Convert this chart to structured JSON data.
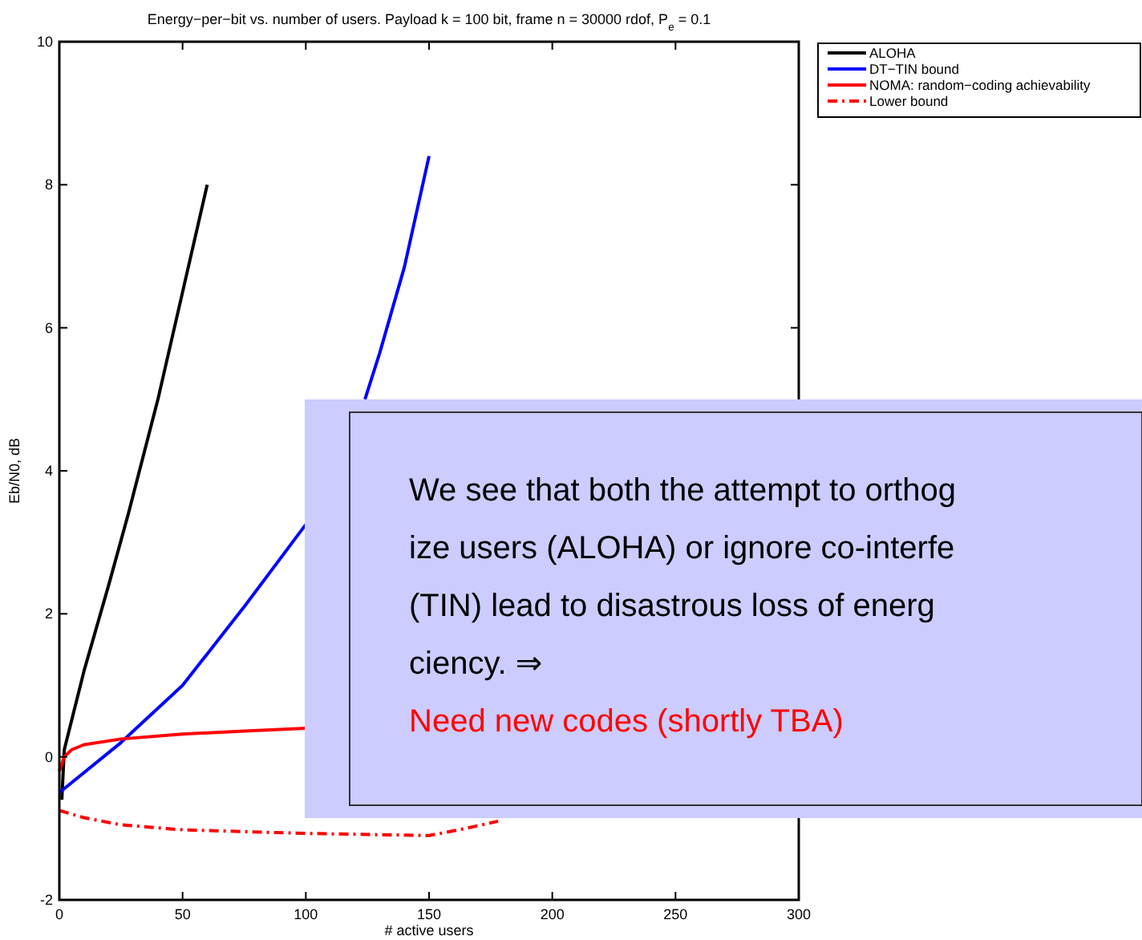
{
  "chart_data": {
    "type": "line",
    "title": "Energy−per−bit vs. number of users. Payload k = 100 bit, frame n = 30000 rdof, P$_{e}$ = 0.1",
    "xlabel": "# active users",
    "ylabel": "Eb/N0, dB",
    "xlim": [
      0,
      300
    ],
    "ylim": [
      -2,
      10
    ],
    "xticks": [
      0,
      50,
      100,
      150,
      200,
      250,
      300
    ],
    "yticks": [
      -2,
      0,
      2,
      4,
      6,
      8,
      10
    ],
    "grid": false,
    "legend": "right",
    "series": [
      {
        "name": "ALOHA",
        "color": "#000000",
        "line_style": "solid",
        "x": [
          1,
          2,
          10,
          20,
          28,
          40,
          50,
          60
        ],
        "values": [
          -0.6,
          0.1,
          1.2,
          2.4,
          3.4,
          5.0,
          6.5,
          8.0
        ]
      },
      {
        "name": "DT−TIN bound",
        "color": "#0000ff",
        "line_style": "solid",
        "x": [
          0,
          25,
          50,
          75,
          100,
          110,
          124,
          130,
          140,
          150
        ],
        "values": [
          -0.5,
          0.2,
          1.0,
          2.1,
          3.25,
          null,
          5.0,
          5.65,
          6.85,
          8.4
        ]
      },
      {
        "name": "NOMA: random−coding achievability",
        "color": "#ff0000",
        "line_style": "solid",
        "x": [
          0,
          2,
          5,
          10,
          25,
          50,
          75,
          100
        ],
        "values": [
          -0.2,
          0.0,
          0.1,
          0.17,
          0.25,
          0.32,
          0.36,
          0.4
        ]
      },
      {
        "name": "Lower bound",
        "color": "#ff0000",
        "line_style": "dashdot",
        "x": [
          0,
          10,
          25,
          50,
          100,
          150,
          165,
          178
        ],
        "values": [
          -0.75,
          -0.85,
          -0.95,
          -1.02,
          -1.07,
          -1.1,
          -1.0,
          -0.9
        ]
      }
    ],
    "annotations": [
      "We see that both the attempt to orthog\nize users (ALOHA) or ignore co-interfe\n(TIN) lead to disastrous loss of energ\nciency. ⇒\nNeed new codes (shortly TBA)"
    ]
  }
}
